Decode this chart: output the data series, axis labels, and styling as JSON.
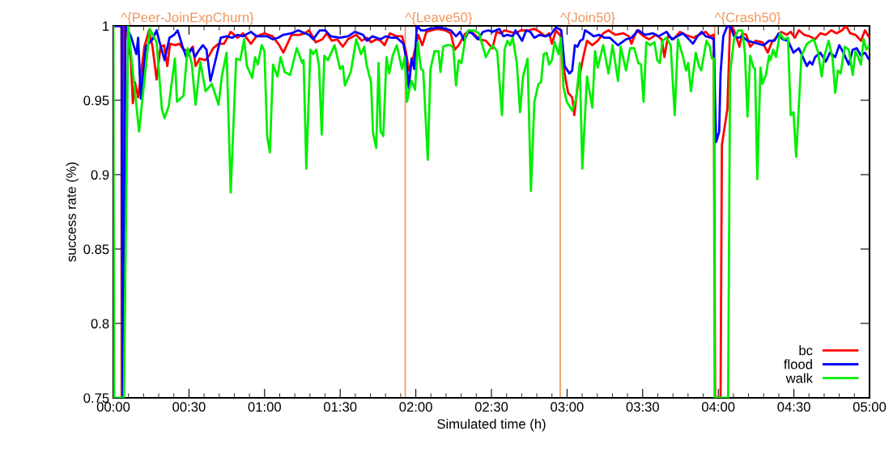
{
  "chart_data": {
    "type": "line",
    "xlabel": "Simulated time (h)",
    "ylabel": "success rate (%)",
    "xlim": [
      0,
      5
    ],
    "ylim": [
      0.75,
      1
    ],
    "xticks": [
      {
        "value": 0,
        "label": "00:00"
      },
      {
        "value": 0.1,
        "label": null
      },
      {
        "value": 0.2,
        "label": null
      },
      {
        "value": 0.3,
        "label": null
      },
      {
        "value": 0.4,
        "label": null
      },
      {
        "value": 0.5,
        "label": "00:30"
      },
      {
        "value": 0.6,
        "label": null
      },
      {
        "value": 0.7,
        "label": null
      },
      {
        "value": 0.8,
        "label": null
      },
      {
        "value": 0.9,
        "label": null
      },
      {
        "value": 1,
        "label": "01:00"
      },
      {
        "value": 1.1,
        "label": null
      },
      {
        "value": 1.2,
        "label": null
      },
      {
        "value": 1.3,
        "label": null
      },
      {
        "value": 1.4,
        "label": null
      },
      {
        "value": 1.5,
        "label": "01:30"
      },
      {
        "value": 1.6,
        "label": null
      },
      {
        "value": 1.7,
        "label": null
      },
      {
        "value": 1.8,
        "label": null
      },
      {
        "value": 1.9,
        "label": null
      },
      {
        "value": 2,
        "label": "02:00"
      },
      {
        "value": 2.1,
        "label": null
      },
      {
        "value": 2.2,
        "label": null
      },
      {
        "value": 2.3,
        "label": null
      },
      {
        "value": 2.4,
        "label": null
      },
      {
        "value": 2.5,
        "label": "02:30"
      },
      {
        "value": 2.6,
        "label": null
      },
      {
        "value": 2.7,
        "label": null
      },
      {
        "value": 2.8,
        "label": null
      },
      {
        "value": 2.9,
        "label": null
      },
      {
        "value": 3,
        "label": "03:00"
      },
      {
        "value": 3.1,
        "label": null
      },
      {
        "value": 3.2,
        "label": null
      },
      {
        "value": 3.3,
        "label": null
      },
      {
        "value": 3.4,
        "label": null
      },
      {
        "value": 3.5,
        "label": "03:30"
      },
      {
        "value": 3.6,
        "label": null
      },
      {
        "value": 3.7,
        "label": null
      },
      {
        "value": 3.8,
        "label": null
      },
      {
        "value": 3.9,
        "label": null
      },
      {
        "value": 4,
        "label": "04:00"
      },
      {
        "value": 4.1,
        "label": null
      },
      {
        "value": 4.2,
        "label": null
      },
      {
        "value": 4.3,
        "label": null
      },
      {
        "value": 4.4,
        "label": null
      },
      {
        "value": 4.5,
        "label": "04:30"
      },
      {
        "value": 4.6,
        "label": null
      },
      {
        "value": 4.7,
        "label": null
      },
      {
        "value": 4.8,
        "label": null
      },
      {
        "value": 4.9,
        "label": null
      },
      {
        "value": 5,
        "label": "05:00"
      }
    ],
    "yticks": [
      0.75,
      0.8,
      0.85,
      0.9,
      0.95,
      {
        "value": 1,
        "label": "1"
      }
    ],
    "grid": false,
    "legend": "bottom right",
    "marker": "none",
    "line_style": "solid",
    "ref_lines": [
      {
        "axis": "x",
        "value": 0.05,
        "label": "^{Peer-JoinExpChurn}",
        "color": "#f0955a"
      },
      {
        "axis": "x",
        "value": 1.93,
        "label": "^{Leave50}",
        "color": "#f0955a"
      },
      {
        "axis": "x",
        "value": 2.955,
        "label": "^{Join50}",
        "color": "#f0955a"
      },
      {
        "axis": "x",
        "value": 3.976,
        "label": "^{Crash50}",
        "color": "#f0955a"
      }
    ],
    "series": [
      {
        "name": "bc",
        "color": "#ff0000",
        "x": [
          0.0,
          0.055,
          0.06,
          0.064,
          0.068,
          0.089,
          0.116,
          0.129,
          0.143,
          0.164,
          0.205,
          0.236,
          0.259,
          0.286,
          0.312,
          0.335,
          0.357,
          0.375,
          0.41,
          0.437,
          0.464,
          0.5,
          0.526,
          0.544,
          0.571,
          0.607,
          0.633,
          0.66,
          0.696,
          0.732,
          0.776,
          0.821,
          0.857,
          0.91,
          0.946,
          0.999,
          1.053,
          1.097,
          1.124,
          1.151,
          1.178,
          1.231,
          1.267,
          1.294,
          1.338,
          1.383,
          1.41,
          1.445,
          1.481,
          1.517,
          1.552,
          1.606,
          1.642,
          1.677,
          1.704,
          1.74,
          1.767,
          1.793,
          1.829,
          1.874,
          1.909,
          1.936,
          1.954,
          1.981,
          2.016,
          2.043,
          2.07,
          2.106,
          2.141,
          2.195,
          2.231,
          2.257,
          2.284,
          2.32,
          2.355,
          2.391,
          2.418,
          2.463,
          2.489,
          2.507,
          2.534,
          2.561,
          2.587,
          2.623,
          2.659,
          2.695,
          2.748,
          2.784,
          2.819,
          2.855,
          2.882,
          2.9,
          2.927,
          2.959,
          2.984,
          3.007,
          3.034,
          3.048,
          3.069,
          3.105,
          3.132,
          3.167,
          3.203,
          3.239,
          3.274,
          3.319,
          3.373,
          3.408,
          3.426,
          3.462,
          3.506,
          3.542,
          3.587,
          3.626,
          3.644,
          3.667,
          3.703,
          3.747,
          3.783,
          3.837,
          3.872,
          3.917,
          3.944,
          3.97,
          3.979,
          4.015,
          4.024,
          4.06,
          4.078,
          4.104,
          4.14,
          4.158,
          4.185,
          4.211,
          4.247,
          4.292,
          4.327,
          4.354,
          4.39,
          4.416,
          4.452,
          4.479,
          4.506,
          4.533,
          4.568,
          4.604,
          4.64,
          4.675,
          4.711,
          4.747,
          4.782,
          4.818,
          4.845,
          4.872,
          4.907,
          4.943,
          4.97,
          4.993
        ],
        "values": [
          1.0,
          1.0,
          0.75,
          0.75,
          1.0,
          0.997,
          0.977,
          0.948,
          0.962,
          0.952,
          0.986,
          0.997,
          0.986,
          0.964,
          0.986,
          0.987,
          0.973,
          0.988,
          0.987,
          0.988,
          0.984,
          0.983,
          0.986,
          0.973,
          0.978,
          0.977,
          0.98,
          0.985,
          0.988,
          0.988,
          0.996,
          0.992,
          0.995,
          0.988,
          0.993,
          0.995,
          0.993,
          0.987,
          0.982,
          0.988,
          0.994,
          0.994,
          0.995,
          0.997,
          0.989,
          0.991,
          0.995,
          0.99,
          0.991,
          0.986,
          0.991,
          0.994,
          0.99,
          0.992,
          0.989,
          0.991,
          0.99,
          0.987,
          0.995,
          0.993,
          0.993,
          0.982,
          0.97,
          0.978,
          0.994,
          0.987,
          0.996,
          0.997,
          0.998,
          0.997,
          0.995,
          0.984,
          0.987,
          0.994,
          0.997,
          0.994,
          0.991,
          0.99,
          0.987,
          0.985,
          0.996,
          0.995,
          0.997,
          0.996,
          0.995,
          0.997,
          0.997,
          0.998,
          0.996,
          0.993,
          0.995,
          0.988,
          0.997,
          0.993,
          0.968,
          0.955,
          0.952,
          0.94,
          0.959,
          0.978,
          0.99,
          0.987,
          0.99,
          0.995,
          0.997,
          0.994,
          0.995,
          0.993,
          0.988,
          0.997,
          0.993,
          0.991,
          0.994,
          0.991,
          0.979,
          0.993,
          0.991,
          0.996,
          0.994,
          0.992,
          0.994,
          0.996,
          0.993,
          0.994,
          0.75,
          0.75,
          0.92,
          0.944,
          1.0,
          0.997,
          0.986,
          0.995,
          0.994,
          0.986,
          0.99,
          0.989,
          0.982,
          0.989,
          0.993,
          0.996,
          0.994,
          0.996,
          0.992,
          0.997,
          0.994,
          0.993,
          0.991,
          0.995,
          0.994,
          0.997,
          0.995,
          0.997,
          1.0,
          0.995,
          0.994,
          0.99,
          0.997,
          0.993
        ]
      },
      {
        "name": "flood",
        "color": "#0000ff",
        "x": [
          0.0,
          0.055,
          0.06,
          0.066,
          0.08,
          0.116,
          0.152,
          0.164,
          0.182,
          0.214,
          0.259,
          0.286,
          0.303,
          0.339,
          0.371,
          0.402,
          0.425,
          0.455,
          0.482,
          0.521,
          0.539,
          0.562,
          0.592,
          0.616,
          0.642,
          0.678,
          0.71,
          0.749,
          0.785,
          0.821,
          0.857,
          0.91,
          0.946,
          1.017,
          1.053,
          1.089,
          1.124,
          1.178,
          1.222,
          1.267,
          1.294,
          1.321,
          1.365,
          1.401,
          1.437,
          1.499,
          1.552,
          1.597,
          1.651,
          1.677,
          1.713,
          1.767,
          1.802,
          1.838,
          1.874,
          1.918,
          1.936,
          1.954,
          1.972,
          1.99,
          2.007,
          2.034,
          2.061,
          2.088,
          2.159,
          2.195,
          2.231,
          2.266,
          2.293,
          2.32,
          2.347,
          2.373,
          2.409,
          2.445,
          2.48,
          2.507,
          2.552,
          2.579,
          2.605,
          2.641,
          2.659,
          2.703,
          2.73,
          2.757,
          2.784,
          2.819,
          2.855,
          2.891,
          2.927,
          2.962,
          2.984,
          3.016,
          3.034,
          3.052,
          3.069,
          3.087,
          3.105,
          3.119,
          3.15,
          3.176,
          3.212,
          3.248,
          3.283,
          3.337,
          3.39,
          3.426,
          3.471,
          3.515,
          3.569,
          3.605,
          3.658,
          3.694,
          3.73,
          3.765,
          3.787,
          3.833,
          3.863,
          3.89,
          3.917,
          3.953,
          3.97,
          3.979,
          3.986,
          4.006,
          4.015,
          4.033,
          4.06,
          4.083,
          4.104,
          4.131,
          4.158,
          4.193,
          4.229,
          4.265,
          4.301,
          4.336,
          4.372,
          4.399,
          4.425,
          4.461,
          4.497,
          4.533,
          4.568,
          4.586,
          4.604,
          4.622,
          4.64,
          4.675,
          4.711,
          4.738,
          4.773,
          4.8,
          4.827,
          4.863,
          4.889,
          4.916,
          4.943,
          4.97,
          4.993
        ],
        "values": [
          1.0,
          1.0,
          0.75,
          0.75,
          1.0,
          0.993,
          0.981,
          0.992,
          0.951,
          0.986,
          0.991,
          0.997,
          0.99,
          0.977,
          0.992,
          0.994,
          0.997,
          0.987,
          0.979,
          0.985,
          0.979,
          0.983,
          0.987,
          0.984,
          0.963,
          0.978,
          0.992,
          0.993,
          0.992,
          0.994,
          0.993,
          0.996,
          0.993,
          0.993,
          0.991,
          0.992,
          0.994,
          0.995,
          0.997,
          0.995,
          0.994,
          0.991,
          0.997,
          0.997,
          0.993,
          0.992,
          0.993,
          0.996,
          0.994,
          0.99,
          0.993,
          0.991,
          0.993,
          0.992,
          0.992,
          0.988,
          0.978,
          0.958,
          0.978,
          0.971,
          1.0,
          0.997,
          0.997,
          0.998,
          0.999,
          0.998,
          0.997,
          0.993,
          0.996,
          0.99,
          0.996,
          0.995,
          0.991,
          0.996,
          0.997,
          0.996,
          0.998,
          0.993,
          0.994,
          0.993,
          0.997,
          0.99,
          0.997,
          0.996,
          0.992,
          0.994,
          0.993,
          0.994,
          0.999,
          0.997,
          0.973,
          0.968,
          0.97,
          0.987,
          0.986,
          0.99,
          0.991,
          0.997,
          0.995,
          0.993,
          0.994,
          0.992,
          0.992,
          0.987,
          0.991,
          0.992,
          0.997,
          0.994,
          0.995,
          0.993,
          0.996,
          0.991,
          0.993,
          0.995,
          0.993,
          0.988,
          0.993,
          0.996,
          0.993,
          0.992,
          0.991,
          0.949,
          0.922,
          0.929,
          0.968,
          0.993,
          1.0,
          0.999,
          0.993,
          0.992,
          0.993,
          0.99,
          0.989,
          0.988,
          0.987,
          0.99,
          0.99,
          0.995,
          0.991,
          0.99,
          0.982,
          0.985,
          0.977,
          0.973,
          0.976,
          0.974,
          0.979,
          0.982,
          0.976,
          0.982,
          0.979,
          0.987,
          0.982,
          0.974,
          0.984,
          0.985,
          0.98,
          0.982,
          0.978
        ]
      },
      {
        "name": "walk",
        "color": "#00ee00",
        "x": [
          0.0,
          0.005,
          0.07,
          0.098,
          0.17,
          0.241,
          0.286,
          0.321,
          0.339,
          0.366,
          0.407,
          0.421,
          0.464,
          0.491,
          0.518,
          0.544,
          0.575,
          0.61,
          0.651,
          0.696,
          0.717,
          0.749,
          0.776,
          0.812,
          0.839,
          0.865,
          0.883,
          0.919,
          0.937,
          0.955,
          0.981,
          0.999,
          1.017,
          1.035,
          1.056,
          1.085,
          1.106,
          1.133,
          1.169,
          1.213,
          1.249,
          1.258,
          1.276,
          1.303,
          1.321,
          1.342,
          1.36,
          1.378,
          1.395,
          1.419,
          1.463,
          1.499,
          1.517,
          1.531,
          1.57,
          1.606,
          1.638,
          1.659,
          1.674,
          1.704,
          1.717,
          1.738,
          1.754,
          1.767,
          1.785,
          1.806,
          1.824,
          1.847,
          1.874,
          1.909,
          1.927,
          1.942,
          1.959,
          1.972,
          1.995,
          2.013,
          2.034,
          2.049,
          2.079,
          2.097,
          2.124,
          2.15,
          2.163,
          2.181,
          2.204,
          2.231,
          2.248,
          2.266,
          2.284,
          2.302,
          2.329,
          2.347,
          2.382,
          2.418,
          2.463,
          2.489,
          2.507,
          2.538,
          2.57,
          2.587,
          2.605,
          2.623,
          2.641,
          2.668,
          2.689,
          2.709,
          2.739,
          2.761,
          2.784,
          2.811,
          2.828,
          2.846,
          2.864,
          2.882,
          2.9,
          2.918,
          2.944,
          2.959,
          2.976,
          2.998,
          3.034,
          3.06,
          3.084,
          3.101,
          3.132,
          3.167,
          3.185,
          3.203,
          3.239,
          3.274,
          3.301,
          3.337,
          3.355,
          3.39,
          3.417,
          3.444,
          3.471,
          3.489,
          3.506,
          3.524,
          3.551,
          3.578,
          3.596,
          3.613,
          3.631,
          3.658,
          3.685,
          3.712,
          3.733,
          3.765,
          3.787,
          3.801,
          3.819,
          3.851,
          3.872,
          3.887,
          3.922,
          3.944,
          3.958,
          3.97,
          3.976,
          4.065,
          4.078,
          4.104,
          4.131,
          4.158,
          4.176,
          4.193,
          4.211,
          4.233,
          4.243,
          4.258,
          4.279,
          4.292,
          4.315,
          4.336,
          4.345,
          4.363,
          4.381,
          4.408,
          4.434,
          4.461,
          4.479,
          4.497,
          4.515,
          4.55,
          4.586,
          4.631,
          4.658,
          4.684,
          4.702,
          4.729,
          4.756,
          4.773,
          4.791,
          4.809,
          4.836,
          4.863,
          4.889,
          4.907,
          4.925,
          4.943,
          4.961,
          4.979,
          4.993
        ],
        "values": [
          1.0,
          0.75,
          0.75,
          1.0,
          0.929,
          0.998,
          0.989,
          0.944,
          0.938,
          0.946,
          0.978,
          0.949,
          0.953,
          0.985,
          0.975,
          0.947,
          0.976,
          0.956,
          0.961,
          0.947,
          0.966,
          0.982,
          0.888,
          0.978,
          0.977,
          0.991,
          0.973,
          0.965,
          0.979,
          0.974,
          0.987,
          0.983,
          0.926,
          0.915,
          0.974,
          0.966,
          0.979,
          0.969,
          0.967,
          0.985,
          0.975,
          0.977,
          0.904,
          0.984,
          0.981,
          0.984,
          0.973,
          0.927,
          0.98,
          0.977,
          0.987,
          0.971,
          0.973,
          0.96,
          0.969,
          0.991,
          0.981,
          0.986,
          0.974,
          0.962,
          0.928,
          0.918,
          0.975,
          0.929,
          0.926,
          0.979,
          0.968,
          0.98,
          0.987,
          0.971,
          0.979,
          0.949,
          0.958,
          0.963,
          0.957,
          0.989,
          0.971,
          0.97,
          0.91,
          0.971,
          0.983,
          0.983,
          0.969,
          0.986,
          0.987,
          0.987,
          0.985,
          0.96,
          0.977,
          0.975,
          0.993,
          0.997,
          0.997,
          0.995,
          0.979,
          0.984,
          0.987,
          0.983,
          0.94,
          0.984,
          0.99,
          0.987,
          0.992,
          0.975,
          0.942,
          0.966,
          0.978,
          0.889,
          0.949,
          0.961,
          0.962,
          0.981,
          0.982,
          0.974,
          0.977,
          0.989,
          0.981,
          0.992,
          0.959,
          0.949,
          0.943,
          0.951,
          0.975,
          0.904,
          0.966,
          0.945,
          0.983,
          0.972,
          0.987,
          0.968,
          0.987,
          0.963,
          0.986,
          0.97,
          0.985,
          0.985,
          0.975,
          0.974,
          0.949,
          0.989,
          0.987,
          0.989,
          0.977,
          0.975,
          0.99,
          0.992,
          0.987,
          0.94,
          0.991,
          0.98,
          0.97,
          0.975,
          0.956,
          0.982,
          0.973,
          0.97,
          0.99,
          0.986,
          0.978,
          0.978,
          0.75,
          0.75,
          0.968,
          0.991,
          0.997,
          0.997,
          0.982,
          0.939,
          0.98,
          0.972,
          0.971,
          0.897,
          0.972,
          0.961,
          0.967,
          0.98,
          0.977,
          0.984,
          0.979,
          0.995,
          0.991,
          0.992,
          0.94,
          0.942,
          0.912,
          0.98,
          0.988,
          0.991,
          0.983,
          0.966,
          0.98,
          0.99,
          0.978,
          0.955,
          0.97,
          0.968,
          0.986,
          0.984,
          0.967,
          0.983,
          0.979,
          0.974,
          0.991,
          0.984,
          0.986
        ]
      }
    ]
  }
}
